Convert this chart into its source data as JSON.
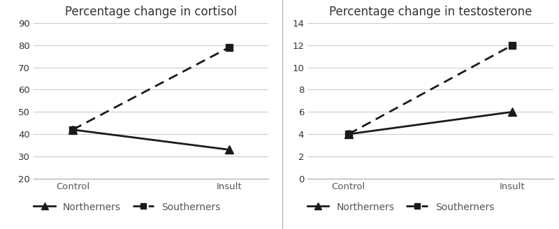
{
  "cortisol": {
    "title": "Percentage change in cortisol",
    "x_labels": [
      "Control",
      "Insult"
    ],
    "northerners": [
      42,
      33
    ],
    "southerners": [
      42,
      79
    ],
    "ylim": [
      20,
      90
    ],
    "yticks": [
      20,
      30,
      40,
      50,
      60,
      70,
      80,
      90
    ]
  },
  "testosterone": {
    "title": "Percentage change in testosterone",
    "x_labels": [
      "Control",
      "Insult"
    ],
    "northerners": [
      4,
      6
    ],
    "southerners": [
      4,
      12
    ],
    "ylim": [
      0,
      14
    ],
    "yticks": [
      0,
      2,
      4,
      6,
      8,
      10,
      12,
      14
    ]
  },
  "line_color": "#1a1a1a",
  "bg_color": "#ffffff",
  "grid_color": "#cccccc",
  "legend_northerners": "Northerners",
  "legend_southerners": "Southerners",
  "title_fontsize": 12,
  "tick_fontsize": 9.5,
  "legend_fontsize": 10
}
